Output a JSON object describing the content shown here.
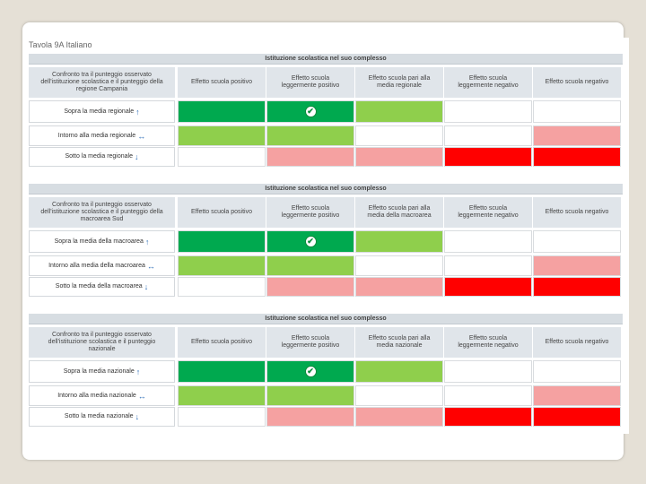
{
  "title": "Tavola 9A Italiano",
  "colors": {
    "dark_green": "#00a94f",
    "light_green": "#8fcf4c",
    "light_red": "#f5a1a1",
    "red": "#ff0000",
    "white": "#ffffff"
  },
  "sections": [
    {
      "header": "Istituzione scolastica nel suo complesso",
      "header_label": "Confronto tra il punteggio osservato dell'istituzione scolastica e il punteggio della regione Campania",
      "columns": [
        "Effetto scuola positivo",
        "Effetto scuola leggermente positivo",
        "Effetto scuola pari alla media regionale",
        "Effetto scuola leggermente negativo",
        "Effetto scuola negativo"
      ],
      "rows": [
        {
          "label": "Sopra la media regionale",
          "arrow": "↑",
          "cells": [
            "dark_green",
            "dark_green",
            "light_green",
            "white",
            "white"
          ],
          "check_col": 1
        },
        {
          "label": "Intorno alla media regionale",
          "arrow": "↔",
          "cells": [
            "light_green",
            "light_green",
            "white",
            "white",
            "light_red"
          ],
          "check_col": -1
        },
        {
          "label": "Sotto la media regionale",
          "arrow": "↓",
          "cells": [
            "white",
            "light_red",
            "light_red",
            "red",
            "red"
          ],
          "check_col": -1
        }
      ]
    },
    {
      "header": "Istituzione scolastica nel suo complesso",
      "header_label": "Confronto tra il punteggio osservato dell'istituzione scolastica e il punteggio della macroarea Sud",
      "columns": [
        "Effetto scuola positivo",
        "Effetto scuola leggermente positivo",
        "Effetto scuola pari alla media della macroarea",
        "Effetto scuola leggermente negativo",
        "Effetto scuola negativo"
      ],
      "rows": [
        {
          "label": "Sopra la media della macroarea",
          "arrow": "↑",
          "cells": [
            "dark_green",
            "dark_green",
            "light_green",
            "white",
            "white"
          ],
          "check_col": 1
        },
        {
          "label": "Intorno alla media della macroarea",
          "arrow": "↔",
          "cells": [
            "light_green",
            "light_green",
            "white",
            "white",
            "light_red"
          ],
          "check_col": -1
        },
        {
          "label": "Sotto la media della macroarea",
          "arrow": "↓",
          "cells": [
            "white",
            "light_red",
            "light_red",
            "red",
            "red"
          ],
          "check_col": -1
        }
      ]
    },
    {
      "header": "Istituzione scolastica nel suo complesso",
      "header_label": "Confronto tra il punteggio osservato dell'istituzione scolastica e il punteggio nazionale",
      "columns": [
        "Effetto scuola positivo",
        "Effetto scuola leggermente positivo",
        "Effetto scuola pari alla media nazionale",
        "Effetto scuola leggermente negativo",
        "Effetto scuola negativo"
      ],
      "rows": [
        {
          "label": "Sopra la media nazionale",
          "arrow": "↑",
          "cells": [
            "dark_green",
            "dark_green",
            "light_green",
            "white",
            "white"
          ],
          "check_col": 1
        },
        {
          "label": "Intorno alla media nazionale",
          "arrow": "↔",
          "cells": [
            "light_green",
            "light_green",
            "white",
            "white",
            "light_red"
          ],
          "check_col": -1
        },
        {
          "label": "Sotto la media nazionale",
          "arrow": "↓",
          "cells": [
            "white",
            "light_red",
            "light_red",
            "red",
            "red"
          ],
          "check_col": -1
        }
      ]
    }
  ]
}
